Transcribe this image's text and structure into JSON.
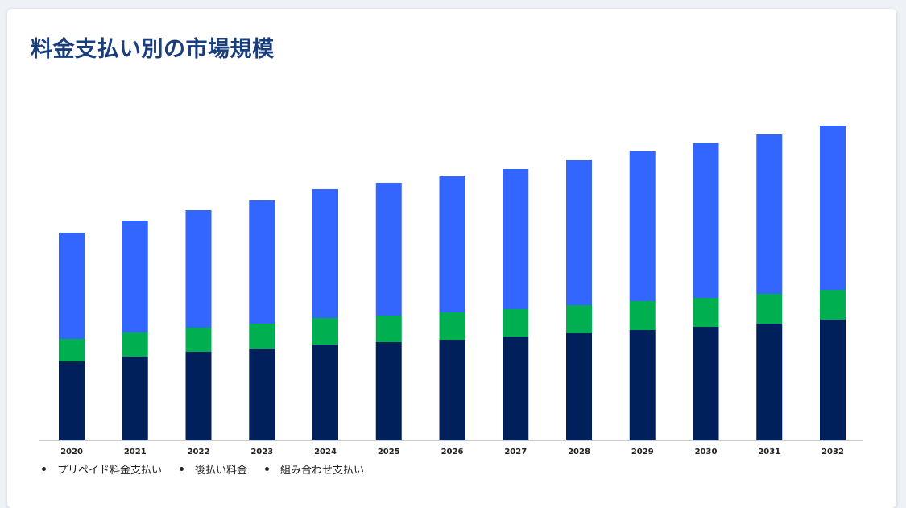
{
  "title": "料金支払い別の市場規模",
  "chart_data": {
    "type": "bar",
    "stacked": true,
    "categories": [
      "2020",
      "2021",
      "2022",
      "2023",
      "2024",
      "2025",
      "2026",
      "2027",
      "2028",
      "2029",
      "2030",
      "2031",
      "2032"
    ],
    "series": [
      {
        "name": "プリペイド料金支払い",
        "color": "#00205c",
        "values": [
          98,
          104,
          110,
          114,
          119,
          122,
          125,
          129,
          133,
          137,
          141,
          145,
          150
        ]
      },
      {
        "name": "後払い料金",
        "color": "#00b050",
        "values": [
          28,
          30,
          30,
          31,
          33,
          33,
          34,
          34,
          35,
          36,
          36,
          37,
          37
        ]
      },
      {
        "name": "組み合わせ支払い",
        "color": "#3366ff",
        "values": [
          132,
          139,
          146,
          153,
          160,
          165,
          169,
          174,
          180,
          186,
          192,
          198,
          204
        ]
      }
    ],
    "ylim": [
      0,
      400
    ],
    "grid": false,
    "legend_position": "bottom-left"
  }
}
